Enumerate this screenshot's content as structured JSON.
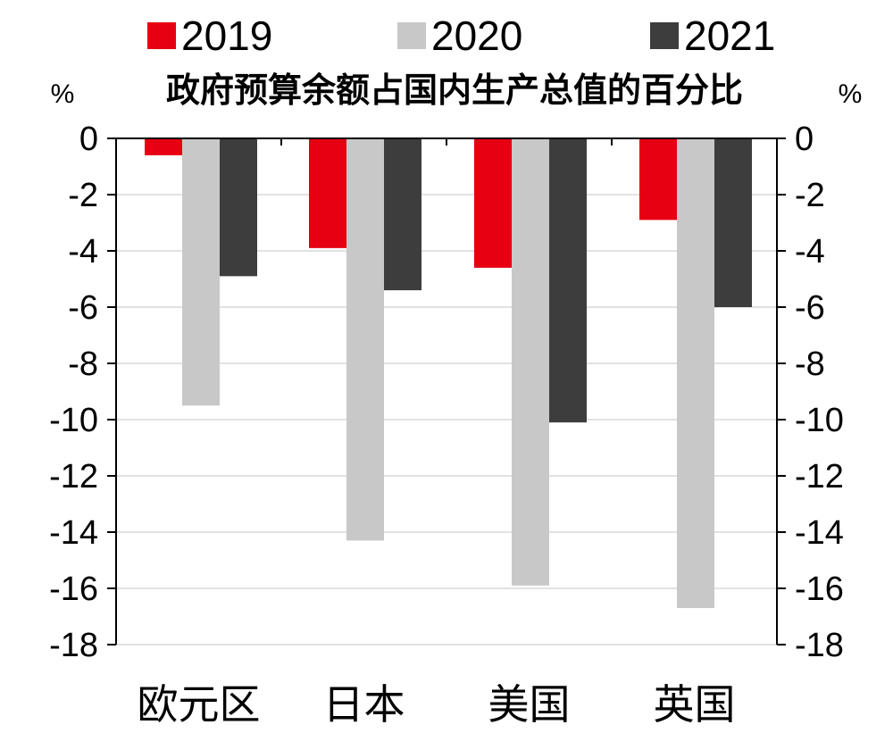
{
  "chart_data": {
    "type": "bar",
    "title": "政府预算余额占国内生产总值的百分比",
    "ylabel_left": "%",
    "ylabel_right": "%",
    "categories": [
      "欧元区",
      "日本",
      "美国",
      "英国"
    ],
    "series": [
      {
        "name": "2019",
        "color": "#e60012",
        "values": [
          -0.6,
          -3.9,
          -4.6,
          -2.9
        ]
      },
      {
        "name": "2020",
        "color": "#c8c8c8",
        "values": [
          -9.5,
          -14.3,
          -15.9,
          -16.7
        ]
      },
      {
        "name": "2021",
        "color": "#3d3d3d",
        "values": [
          -4.9,
          -5.4,
          -10.1,
          -6.0
        ]
      }
    ],
    "ylim": [
      -18,
      0
    ],
    "yticks": [
      "0",
      "-2",
      "-4",
      "-6",
      "-8",
      "-10",
      "-12",
      "-14",
      "-16",
      "-18"
    ],
    "grid": true,
    "legend_position": "top"
  }
}
